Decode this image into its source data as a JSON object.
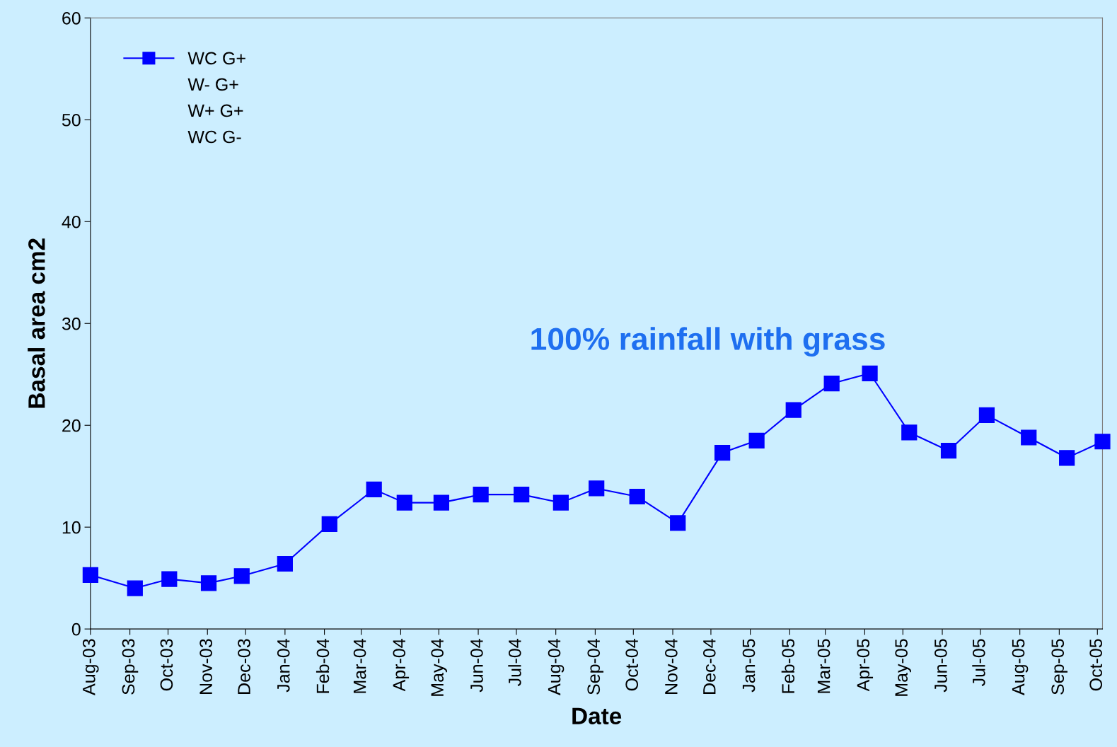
{
  "chart_data": {
    "type": "line",
    "xlabel": "Date",
    "ylabel": "Basal area cm2",
    "annotations": [
      "100% rainfall with grass"
    ],
    "x": [
      "2003-08-01",
      "2003-09-05",
      "2003-10-02",
      "2003-11-02",
      "2003-11-28",
      "2004-01-01",
      "2004-02-05",
      "2004-03-11",
      "2004-04-04",
      "2004-05-03",
      "2004-06-03",
      "2004-07-05",
      "2004-08-05",
      "2004-09-02",
      "2004-10-04",
      "2004-11-05",
      "2004-12-10",
      "2005-01-06",
      "2005-02-04",
      "2005-03-06",
      "2005-04-05",
      "2005-05-06",
      "2005-06-06",
      "2005-07-06",
      "2005-08-08",
      "2005-09-07",
      "2005-10-05"
    ],
    "series": [
      {
        "name": "WC G+",
        "color": "#0000ff",
        "values": [
          5.3,
          4.0,
          4.9,
          4.5,
          5.2,
          6.4,
          10.3,
          13.7,
          12.4,
          12.4,
          13.2,
          13.2,
          12.4,
          13.8,
          13.0,
          10.4,
          17.3,
          18.5,
          21.5,
          24.1,
          25.1,
          19.3,
          17.5,
          21.0,
          18.8,
          16.8,
          18.4
        ]
      },
      {
        "name": "W- G+",
        "values": [
          null,
          null,
          null,
          null,
          null,
          null,
          null,
          null,
          null,
          null,
          null,
          null,
          null,
          null,
          null,
          null,
          null,
          null,
          null,
          null,
          null,
          null,
          null,
          null,
          null,
          null,
          null
        ]
      },
      {
        "name": "W+ G+",
        "values": [
          null,
          null,
          null,
          null,
          null,
          null,
          null,
          null,
          null,
          null,
          null,
          null,
          null,
          null,
          null,
          null,
          null,
          null,
          null,
          null,
          null,
          null,
          null,
          null,
          null,
          null,
          null
        ]
      },
      {
        "name": "WC G-",
        "values": [
          null,
          null,
          null,
          null,
          null,
          null,
          null,
          null,
          null,
          null,
          null,
          null,
          null,
          null,
          null,
          null,
          null,
          null,
          null,
          null,
          null,
          null,
          null,
          null,
          null,
          null,
          null
        ]
      }
    ],
    "marker": "square",
    "line_style": "solid",
    "legend": "top left",
    "grid": false,
    "ylim": [
      0,
      60
    ],
    "yticks": [
      0,
      10,
      20,
      30,
      40,
      50,
      60
    ],
    "xlim": [
      "2003-08-01",
      "2005-10-05"
    ],
    "xticks": [
      {
        "value": "2003-08-01",
        "label": "Aug-03"
      },
      {
        "value": "2003-09-01",
        "label": "Sep-03"
      },
      {
        "value": "2003-10-01",
        "label": "Oct-03"
      },
      {
        "value": "2003-11-01",
        "label": "Nov-03"
      },
      {
        "value": "2003-12-01",
        "label": "Dec-03"
      },
      {
        "value": "2004-01-01",
        "label": "Jan-04"
      },
      {
        "value": "2004-02-01",
        "label": "Feb-04"
      },
      {
        "value": "2004-03-01",
        "label": "Mar-04"
      },
      {
        "value": "2004-04-01",
        "label": "Apr-04"
      },
      {
        "value": "2004-05-01",
        "label": "May-04"
      },
      {
        "value": "2004-06-01",
        "label": "Jun-04"
      },
      {
        "value": "2004-07-01",
        "label": "Jul-04"
      },
      {
        "value": "2004-08-01",
        "label": "Aug-04"
      },
      {
        "value": "2004-09-01",
        "label": "Sep-04"
      },
      {
        "value": "2004-10-01",
        "label": "Oct-04"
      },
      {
        "value": "2004-11-01",
        "label": "Nov-04"
      },
      {
        "value": "2004-12-01",
        "label": "Dec-04"
      },
      {
        "value": "2005-01-01",
        "label": "Jan-05"
      },
      {
        "value": "2005-02-01",
        "label": "Feb-05"
      },
      {
        "value": "2005-03-01",
        "label": "Mar-05"
      },
      {
        "value": "2005-04-01",
        "label": "Apr-05"
      },
      {
        "value": "2005-05-01",
        "label": "May-05"
      },
      {
        "value": "2005-06-01",
        "label": "Jun-05"
      },
      {
        "value": "2005-07-01",
        "label": "Jul-05"
      },
      {
        "value": "2005-08-01",
        "label": "Aug-05"
      },
      {
        "value": "2005-09-01",
        "label": "Sep-05"
      },
      {
        "value": "2005-10-01",
        "label": "Oct-05"
      }
    ]
  }
}
